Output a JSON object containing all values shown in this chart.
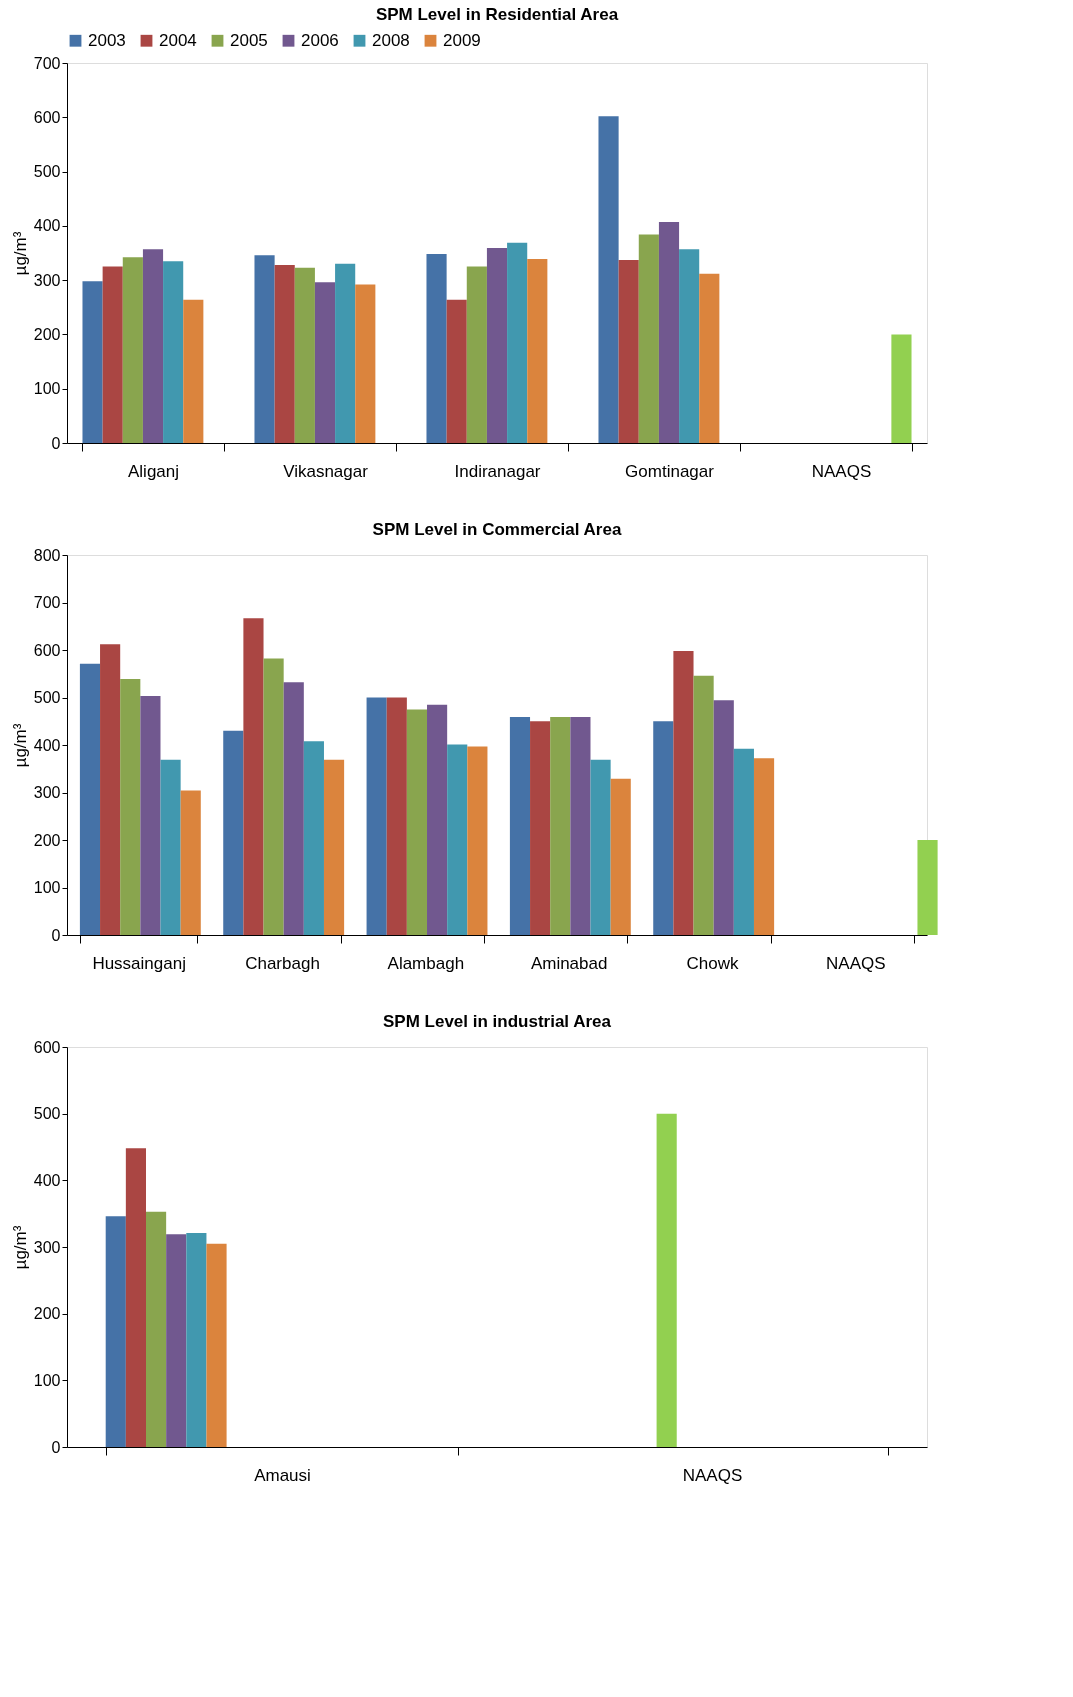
{
  "chart_data": [
    {
      "type": "bar",
      "title": "SPM Level in Residential Area",
      "ylabel": "µg/m³",
      "categories": [
        "Aliganj",
        "Vikasnagar",
        "Indiranagar",
        "Gomtinagar",
        "NAAQS"
      ],
      "ylim": [
        0,
        700
      ],
      "yticks": [
        0,
        100,
        200,
        300,
        400,
        500,
        600,
        700
      ],
      "grid": false,
      "legend": "top",
      "series": [
        {
          "name": "2003",
          "color": "#4572a7",
          "values": [
            298,
            346,
            348,
            602,
            null
          ]
        },
        {
          "name": "2004",
          "color": "#aa4643",
          "values": [
            325,
            328,
            264,
            337,
            null
          ]
        },
        {
          "name": "2005",
          "color": "#89a54e",
          "values": [
            342,
            323,
            325,
            384,
            null
          ]
        },
        {
          "name": "2006",
          "color": "#71588f",
          "values": [
            357,
            296,
            359,
            407,
            null
          ]
        },
        {
          "name": "2008",
          "color": "#4198af",
          "values": [
            335,
            330,
            369,
            357,
            null
          ]
        },
        {
          "name": "2009",
          "color": "#db843d",
          "values": [
            264,
            292,
            339,
            312,
            null
          ]
        },
        {
          "color": "#92d050",
          "values": [
            null,
            null,
            null,
            null,
            200
          ]
        }
      ]
    },
    {
      "type": "bar",
      "title": "SPM Level in Commercial Area",
      "ylabel": "µg/m³",
      "categories": [
        "Hussainganj",
        "Charbagh",
        "Alambagh",
        "Aminabad",
        "Chowk",
        "NAAQS"
      ],
      "ylim": [
        0,
        800
      ],
      "yticks": [
        0,
        100,
        200,
        300,
        400,
        500,
        600,
        700,
        800
      ],
      "grid": false,
      "legend": false,
      "series": [
        {
          "name": "2003",
          "color": "#4572a7",
          "values": [
            571,
            430,
            500,
            459,
            450,
            null
          ]
        },
        {
          "name": "2004",
          "color": "#aa4643",
          "values": [
            612,
            667,
            500,
            450,
            598,
            null
          ]
        },
        {
          "name": "2005",
          "color": "#89a54e",
          "values": [
            539,
            582,
            475,
            459,
            546,
            null
          ]
        },
        {
          "name": "2006",
          "color": "#71588f",
          "values": [
            503,
            532,
            485,
            459,
            494,
            null
          ]
        },
        {
          "name": "2008",
          "color": "#4198af",
          "values": [
            369,
            408,
            401,
            369,
            392,
            null
          ]
        },
        {
          "name": "2009",
          "color": "#db843d",
          "values": [
            304,
            369,
            397,
            329,
            372,
            null
          ]
        },
        {
          "color": "#92d050",
          "values": [
            null,
            null,
            null,
            null,
            null,
            200
          ]
        }
      ]
    },
    {
      "type": "bar",
      "title": "SPM Level in industrial Area",
      "ylabel": "µg/m³",
      "categories": [
        "Amausi",
        "NAAQS"
      ],
      "ylim": [
        0,
        600
      ],
      "yticks": [
        0,
        100,
        200,
        300,
        400,
        500,
        600
      ],
      "grid": false,
      "legend": false,
      "series": [
        {
          "name": "2003",
          "color": "#4572a7",
          "values": [
            346,
            null
          ]
        },
        {
          "name": "2004",
          "color": "#aa4643",
          "values": [
            448,
            null
          ]
        },
        {
          "name": "2005",
          "color": "#89a54e",
          "values": [
            353,
            null
          ]
        },
        {
          "name": "2006",
          "color": "#71588f",
          "values": [
            319,
            null
          ]
        },
        {
          "name": "2008",
          "color": "#4198af",
          "values": [
            321,
            null
          ]
        },
        {
          "name": "2009",
          "color": "#db843d",
          "values": [
            305,
            null
          ]
        },
        {
          "color": "#92d050",
          "values": [
            null,
            500
          ]
        }
      ]
    }
  ]
}
